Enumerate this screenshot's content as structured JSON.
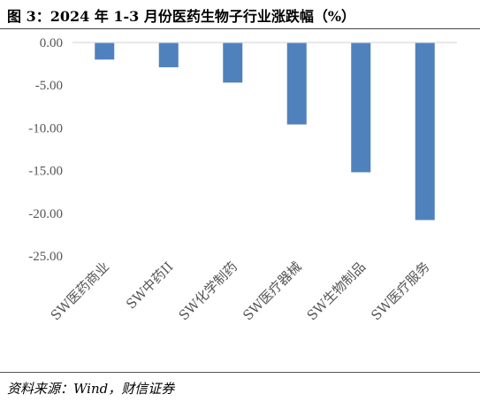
{
  "figure": {
    "title": "图 3：2024 年 1-3 月份医药生物子行业涨跌幅（%）",
    "source": "资料来源：Wind，财信证券"
  },
  "chart_data": {
    "type": "bar",
    "title": "",
    "xlabel": "",
    "ylabel": "",
    "categories": [
      "SW医药商业",
      "SW中药II",
      "SW化学制药",
      "SW医疗器械",
      "SW生物制品",
      "SW医疗服务"
    ],
    "values": [
      -2.0,
      -2.9,
      -4.7,
      -9.6,
      -15.2,
      -20.8
    ],
    "ylim": [
      -25,
      0
    ],
    "yticks": [
      "0.00",
      "-5.00",
      "-10.00",
      "-15.00",
      "-20.00",
      "-25.00"
    ],
    "ytick_values": [
      0,
      -5,
      -10,
      -15,
      -20,
      -25
    ],
    "grid": false,
    "legend": "none",
    "bar_color": "#4f81bd",
    "axis_color": "#d9d9d9"
  }
}
